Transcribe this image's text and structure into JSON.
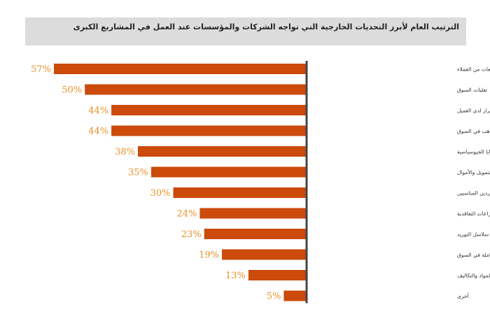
{
  "chart_data": {
    "type": "bar",
    "orientation": "horizontal",
    "title": "الترتيب العام لأبرز التحديات الخارجية التي تواجه الشركات والمؤسسات عند العمل في المشاريع الكبرى",
    "categories": [
      "تأخر استلام الدفعات من العملاء",
      "تقلبات السوق",
      "صناعة القرار لدى العميل",
      "توفر المواهب في السوق",
      "عدم الاستقرار السياسي والقضايا الجيوسياسية",
      "توفر التمويل والأموال",
      "اجتذاب الموردين المناسبين",
      "النزاعات التعاقدية",
      "قدرة/أداء سلاسل التوريد",
      "توفر الأيدي العاملة في السوق",
      "التذبذب في أسعار المواد والتكاليف",
      "أخرى"
    ],
    "values": [
      57,
      50,
      44,
      44,
      38,
      35,
      30,
      24,
      23,
      19,
      13,
      5
    ],
    "value_labels": [
      "57%",
      "50%",
      "44%",
      "44%",
      "38%",
      "35%",
      "30%",
      "24%",
      "23%",
      "19%",
      "13%",
      "5%"
    ],
    "xlim": [
      0,
      57
    ],
    "bar_color": "#cc4a0a",
    "label_color": "#e8912a",
    "axis_color": "#444444",
    "grid": false
  }
}
